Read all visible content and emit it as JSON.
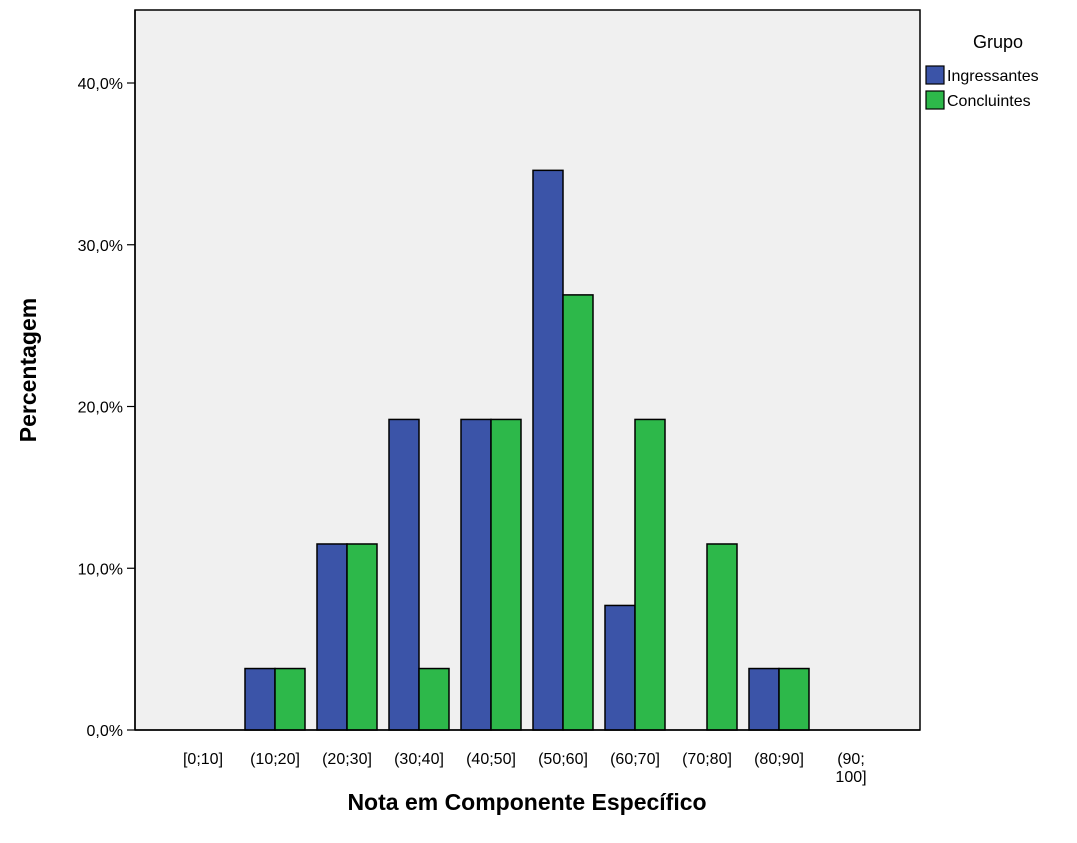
{
  "chart_data": {
    "type": "bar",
    "title": "",
    "xlabel": "Nota em Componente Específico",
    "ylabel": "Percentagem",
    "categories": [
      [
        "[0;10]"
      ],
      [
        "(10;20]"
      ],
      [
        "(20;30]"
      ],
      [
        "(30;40]"
      ],
      [
        "(40;50]"
      ],
      [
        "(50;60]"
      ],
      [
        "(60;70]"
      ],
      [
        "(70;80]"
      ],
      [
        "(80;90]"
      ],
      [
        "(90;",
        "100]"
      ]
    ],
    "series": [
      {
        "name": "Ingressantes",
        "color": "#3B54A8",
        "values": [
          0,
          3.8,
          11.5,
          19.2,
          19.2,
          34.6,
          7.7,
          0,
          3.8,
          0
        ]
      },
      {
        "name": "Concluintes",
        "color": "#2DB84A",
        "values": [
          0,
          3.8,
          11.5,
          3.8,
          19.2,
          26.9,
          19.2,
          11.5,
          3.8,
          0
        ]
      }
    ],
    "ylim": [
      0,
      40
    ],
    "yticks": [
      "0,0%",
      "10,0%",
      "20,0%",
      "30,0%",
      "40,0%"
    ],
    "plot_background": "#F0F0F0",
    "grid": false,
    "legend": {
      "title": "Grupo",
      "position": "top-right"
    }
  }
}
